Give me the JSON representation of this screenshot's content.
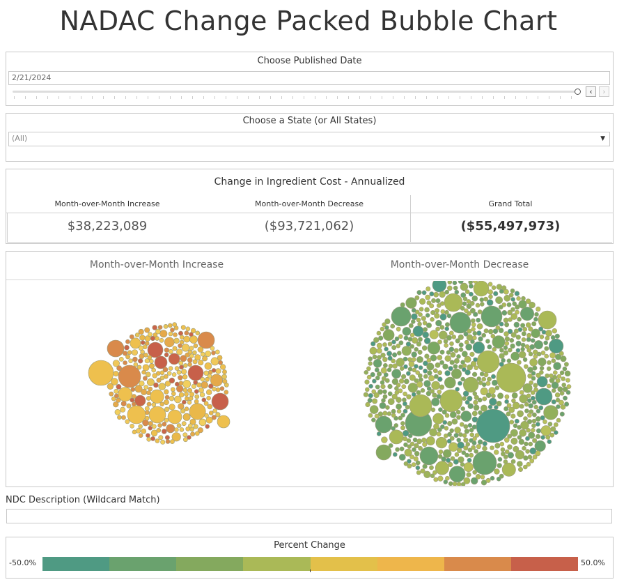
{
  "page_title": "NADAC Change Packed Bubble Chart",
  "date_filter": {
    "label": "Choose Published Date",
    "value": "2/21/2024",
    "prev_icon": "chevron-left-icon",
    "next_icon": "chevron-right-icon"
  },
  "state_filter": {
    "label": "Choose a State (or All States)",
    "value": "(All)",
    "dropdown_icon": "caret-down-icon"
  },
  "summary": {
    "title": "Change in Ingredient Cost - Annualized",
    "increase_label": "Month-over-Month Increase",
    "decrease_label": "Month-over-Month Decrease",
    "total_label": "Grand Total",
    "increase_value": "$38,223,089",
    "decrease_value": "($93,721,062)",
    "total_value": "($55,497,973)"
  },
  "bubbles": {
    "increase_title": "Month-over-Month Increase",
    "decrease_title": "Month-over-Month Decrease"
  },
  "ndc_filter": {
    "label": "NDC Description (Wildcard Match)",
    "value": ""
  },
  "legend": {
    "title": "Percent Change",
    "min_label": "-50.0%",
    "max_label": "50.0%",
    "colors": [
      "#4f9a83",
      "#6aa26e",
      "#84a95e",
      "#aab957",
      "#e3c04a",
      "#eeb64b",
      "#d98a4b",
      "#c7604a"
    ]
  },
  "chart_data": {
    "type": "packed-bubble",
    "title": "Percent Change",
    "color_range": [
      -50.0,
      50.0
    ],
    "groups": [
      {
        "name": "Month-over-Month Increase",
        "total": 38223089
      },
      {
        "name": "Month-over-Month Decrease",
        "total": -93721062
      }
    ]
  }
}
